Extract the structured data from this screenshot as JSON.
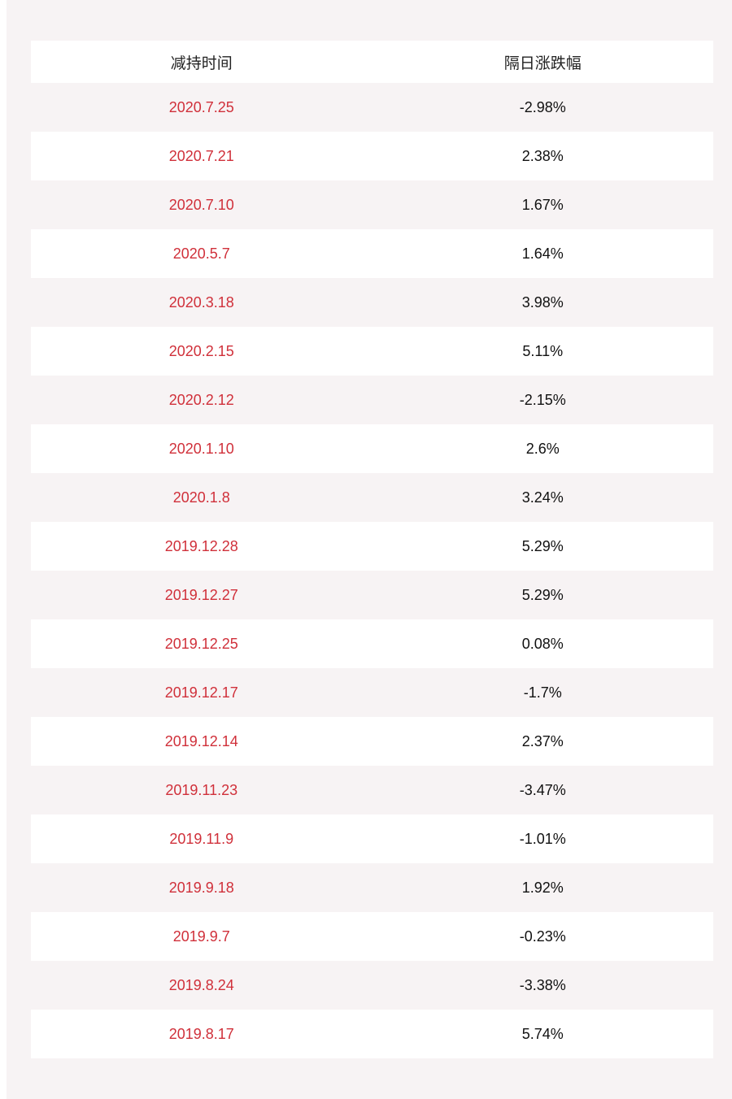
{
  "table": {
    "headers": [
      "减持时间",
      "隔日涨跌幅"
    ],
    "rows": [
      {
        "date": "2020.7.25",
        "change": "-2.98%"
      },
      {
        "date": "2020.7.21",
        "change": "2.38%"
      },
      {
        "date": "2020.7.10",
        "change": "1.67%"
      },
      {
        "date": "2020.5.7",
        "change": "1.64%"
      },
      {
        "date": "2020.3.18",
        "change": "3.98%"
      },
      {
        "date": "2020.2.15",
        "change": "5.11%"
      },
      {
        "date": "2020.2.12",
        "change": "-2.15%"
      },
      {
        "date": "2020.1.10",
        "change": "2.6%"
      },
      {
        "date": "2020.1.8",
        "change": "3.24%"
      },
      {
        "date": "2019.12.28",
        "change": "5.29%"
      },
      {
        "date": "2019.12.27",
        "change": "5.29%"
      },
      {
        "date": "2019.12.25",
        "change": "0.08%"
      },
      {
        "date": "2019.12.17",
        "change": "-1.7%"
      },
      {
        "date": "2019.12.14",
        "change": "2.37%"
      },
      {
        "date": "2019.11.23",
        "change": "-3.47%"
      },
      {
        "date": "2019.11.9",
        "change": "-1.01%"
      },
      {
        "date": "2019.9.18",
        "change": "1.92%"
      },
      {
        "date": "2019.9.7",
        "change": "-0.23%"
      },
      {
        "date": "2019.8.24",
        "change": "-3.38%"
      },
      {
        "date": "2019.8.17",
        "change": "5.74%"
      }
    ]
  },
  "colors": {
    "date_text": "#d0303a",
    "value_text": "#111111",
    "stripe": "#f7f3f4",
    "row_white": "#ffffff"
  }
}
